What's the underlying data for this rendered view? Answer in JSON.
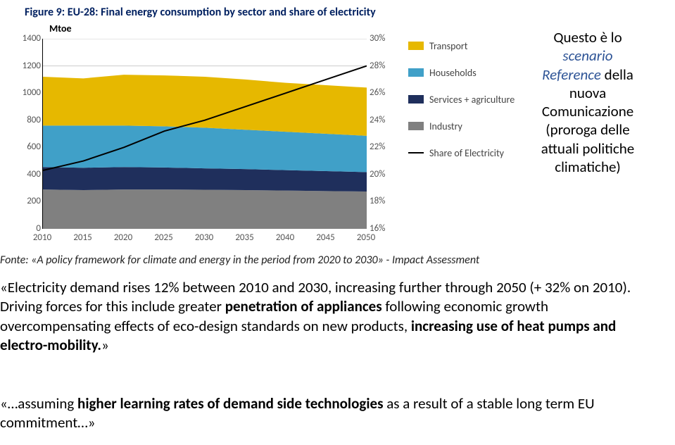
{
  "figure": {
    "title": "Figure 9: EU-28: Final energy consumption by sector and share of electricity",
    "ylabel_unit": "Mtoe",
    "chart": {
      "type": "stacked_area_with_line",
      "background_color": "#ffffff",
      "grid_color": "#cccccc",
      "axis_color": "#000000",
      "font_size_ticks": 12,
      "x": [
        2010,
        2015,
        2020,
        2025,
        2030,
        2035,
        2040,
        2045,
        2050
      ],
      "xlim": [
        2010,
        2050
      ],
      "y1_lim": [
        0,
        1400
      ],
      "y1_ticks": [
        0,
        200,
        400,
        600,
        800,
        1000,
        1200,
        1400
      ],
      "y2_lim": [
        16,
        30
      ],
      "y2_ticks": [
        "16%",
        "18%",
        "20%",
        "22%",
        "24%",
        "26%",
        "28%",
        "30%"
      ],
      "series": [
        {
          "name": "Industry",
          "color": "#808080",
          "values_cumulative": [
            290,
            285,
            290,
            290,
            288,
            285,
            282,
            278,
            275
          ]
        },
        {
          "name": "Services + agriculture",
          "color": "#1f2f5c",
          "values_cumulative": [
            455,
            450,
            455,
            452,
            445,
            440,
            432,
            425,
            418
          ]
        },
        {
          "name": "Households",
          "color": "#40a0c8",
          "values_cumulative": [
            760,
            760,
            760,
            755,
            745,
            730,
            715,
            700,
            685
          ]
        },
        {
          "name": "Transport",
          "color": "#e6b800",
          "values_cumulative": [
            1120,
            1108,
            1135,
            1130,
            1120,
            1100,
            1075,
            1058,
            1040
          ]
        }
      ],
      "line_series": {
        "name": "Share of Electricity",
        "color": "#000000",
        "line_width": 2,
        "values_y2_pct": [
          20.3,
          21.0,
          22.0,
          23.2,
          24.0,
          25.0,
          26.0,
          27.0,
          28.0
        ]
      }
    },
    "legend": {
      "items": [
        {
          "label": "Transport",
          "color": "#e6b800",
          "type": "fill"
        },
        {
          "label": "Households",
          "color": "#40a0c8",
          "type": "fill"
        },
        {
          "label": "Services + agriculture",
          "color": "#1f2f5c",
          "type": "fill"
        },
        {
          "label": "Industry",
          "color": "#808080",
          "type": "fill"
        },
        {
          "label": "Share of Electricity",
          "color": "#000000",
          "type": "line"
        }
      ]
    }
  },
  "annotation": {
    "line1": "Questo è lo",
    "line2": "scenario",
    "line3": "Reference",
    "line3b": " della",
    "line4": "nuova",
    "line5": "Comunicazione",
    "line6": "(proroga delle",
    "line7": "attuali politiche",
    "line8": "climatiche)"
  },
  "source": "Fonte: «A policy framework for climate and energy in the period from 2020 to 2030» - Impact Assessment",
  "para1": {
    "t1": "«Electricity demand rises 12% between 2010 and 2030, increasing further through 2050 (+ 32% on 2010). Driving forces for this include greater ",
    "b1": "penetration of appliances ",
    "t2": "following economic growth overcompensating effects of eco-design standards on new products, ",
    "b2": "increasing use of heat pumps and electro-mobility.",
    "t3": "»"
  },
  "para2": {
    "t1": "«…assuming ",
    "b1": "higher learning rates of demand side technologies ",
    "t2": "as a result of a stable long term EU commitment…»"
  }
}
